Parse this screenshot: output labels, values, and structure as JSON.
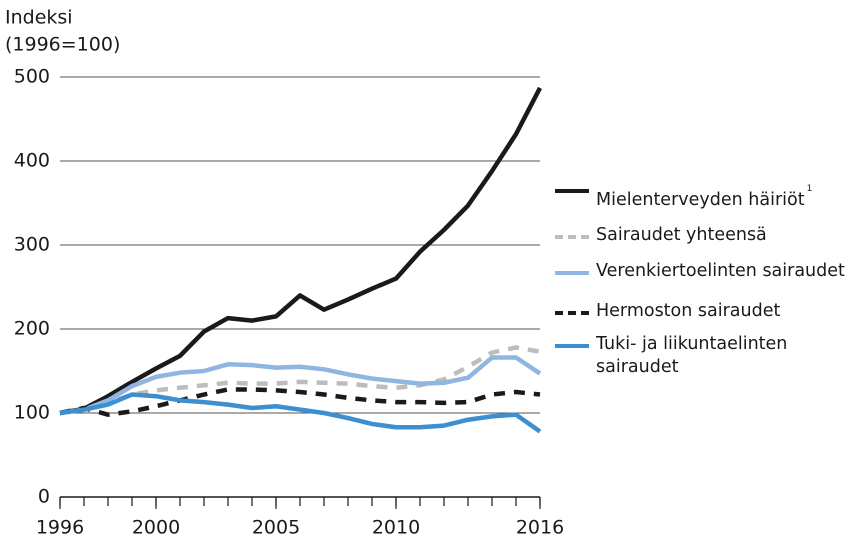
{
  "chart_data": {
    "type": "line",
    "y_label": [
      "Indeksi",
      "(1996=100)"
    ],
    "x": [
      1996,
      1997,
      1998,
      1999,
      2000,
      2001,
      2002,
      2003,
      2004,
      2005,
      2006,
      2007,
      2008,
      2009,
      2010,
      2011,
      2012,
      2013,
      2014,
      2015,
      2016
    ],
    "xlim": [
      1996,
      2016
    ],
    "xticks": [
      1996,
      2000,
      2005,
      2010,
      2016
    ],
    "ylim": [
      0,
      500
    ],
    "yticks": [
      0,
      100,
      200,
      300,
      400,
      500
    ],
    "grid": true,
    "series": [
      {
        "name": "Mielenterveyden häiriöt",
        "note": "1",
        "color": "#1a1a1a",
        "dashed": false,
        "values": [
          100,
          105,
          120,
          137,
          153,
          168,
          197,
          213,
          210,
          215,
          240,
          223,
          235,
          248,
          260,
          292,
          318,
          347,
          388,
          432,
          487
        ]
      },
      {
        "name": "Sairaudet yhteensä",
        "color": "#bdbdbd",
        "dashed": true,
        "values": [
          100,
          104,
          112,
          122,
          127,
          130,
          133,
          136,
          135,
          135,
          137,
          136,
          135,
          132,
          130,
          133,
          140,
          155,
          172,
          178,
          173
        ]
      },
      {
        "name": "Verenkiertoelinten sairaudet",
        "color": "#8fb6e0",
        "dashed": false,
        "values": [
          100,
          104,
          115,
          132,
          143,
          148,
          150,
          158,
          157,
          154,
          155,
          152,
          146,
          141,
          138,
          135,
          136,
          142,
          166,
          166,
          147
        ]
      },
      {
        "name": "Hermoston sairaudet",
        "color": "#1a1a1a",
        "dashed": true,
        "values": [
          100,
          106,
          98,
          102,
          108,
          115,
          122,
          128,
          128,
          127,
          125,
          122,
          118,
          115,
          113,
          113,
          112,
          113,
          122,
          125,
          122
        ]
      },
      {
        "name": "Tuki- ja liikuntaelinten sairaudet",
        "color": "#3d8fd0",
        "dashed": false,
        "values": [
          100,
          104,
          110,
          122,
          120,
          115,
          113,
          110,
          106,
          108,
          104,
          100,
          94,
          87,
          83,
          83,
          85,
          92,
          96,
          98,
          78
        ]
      }
    ]
  }
}
